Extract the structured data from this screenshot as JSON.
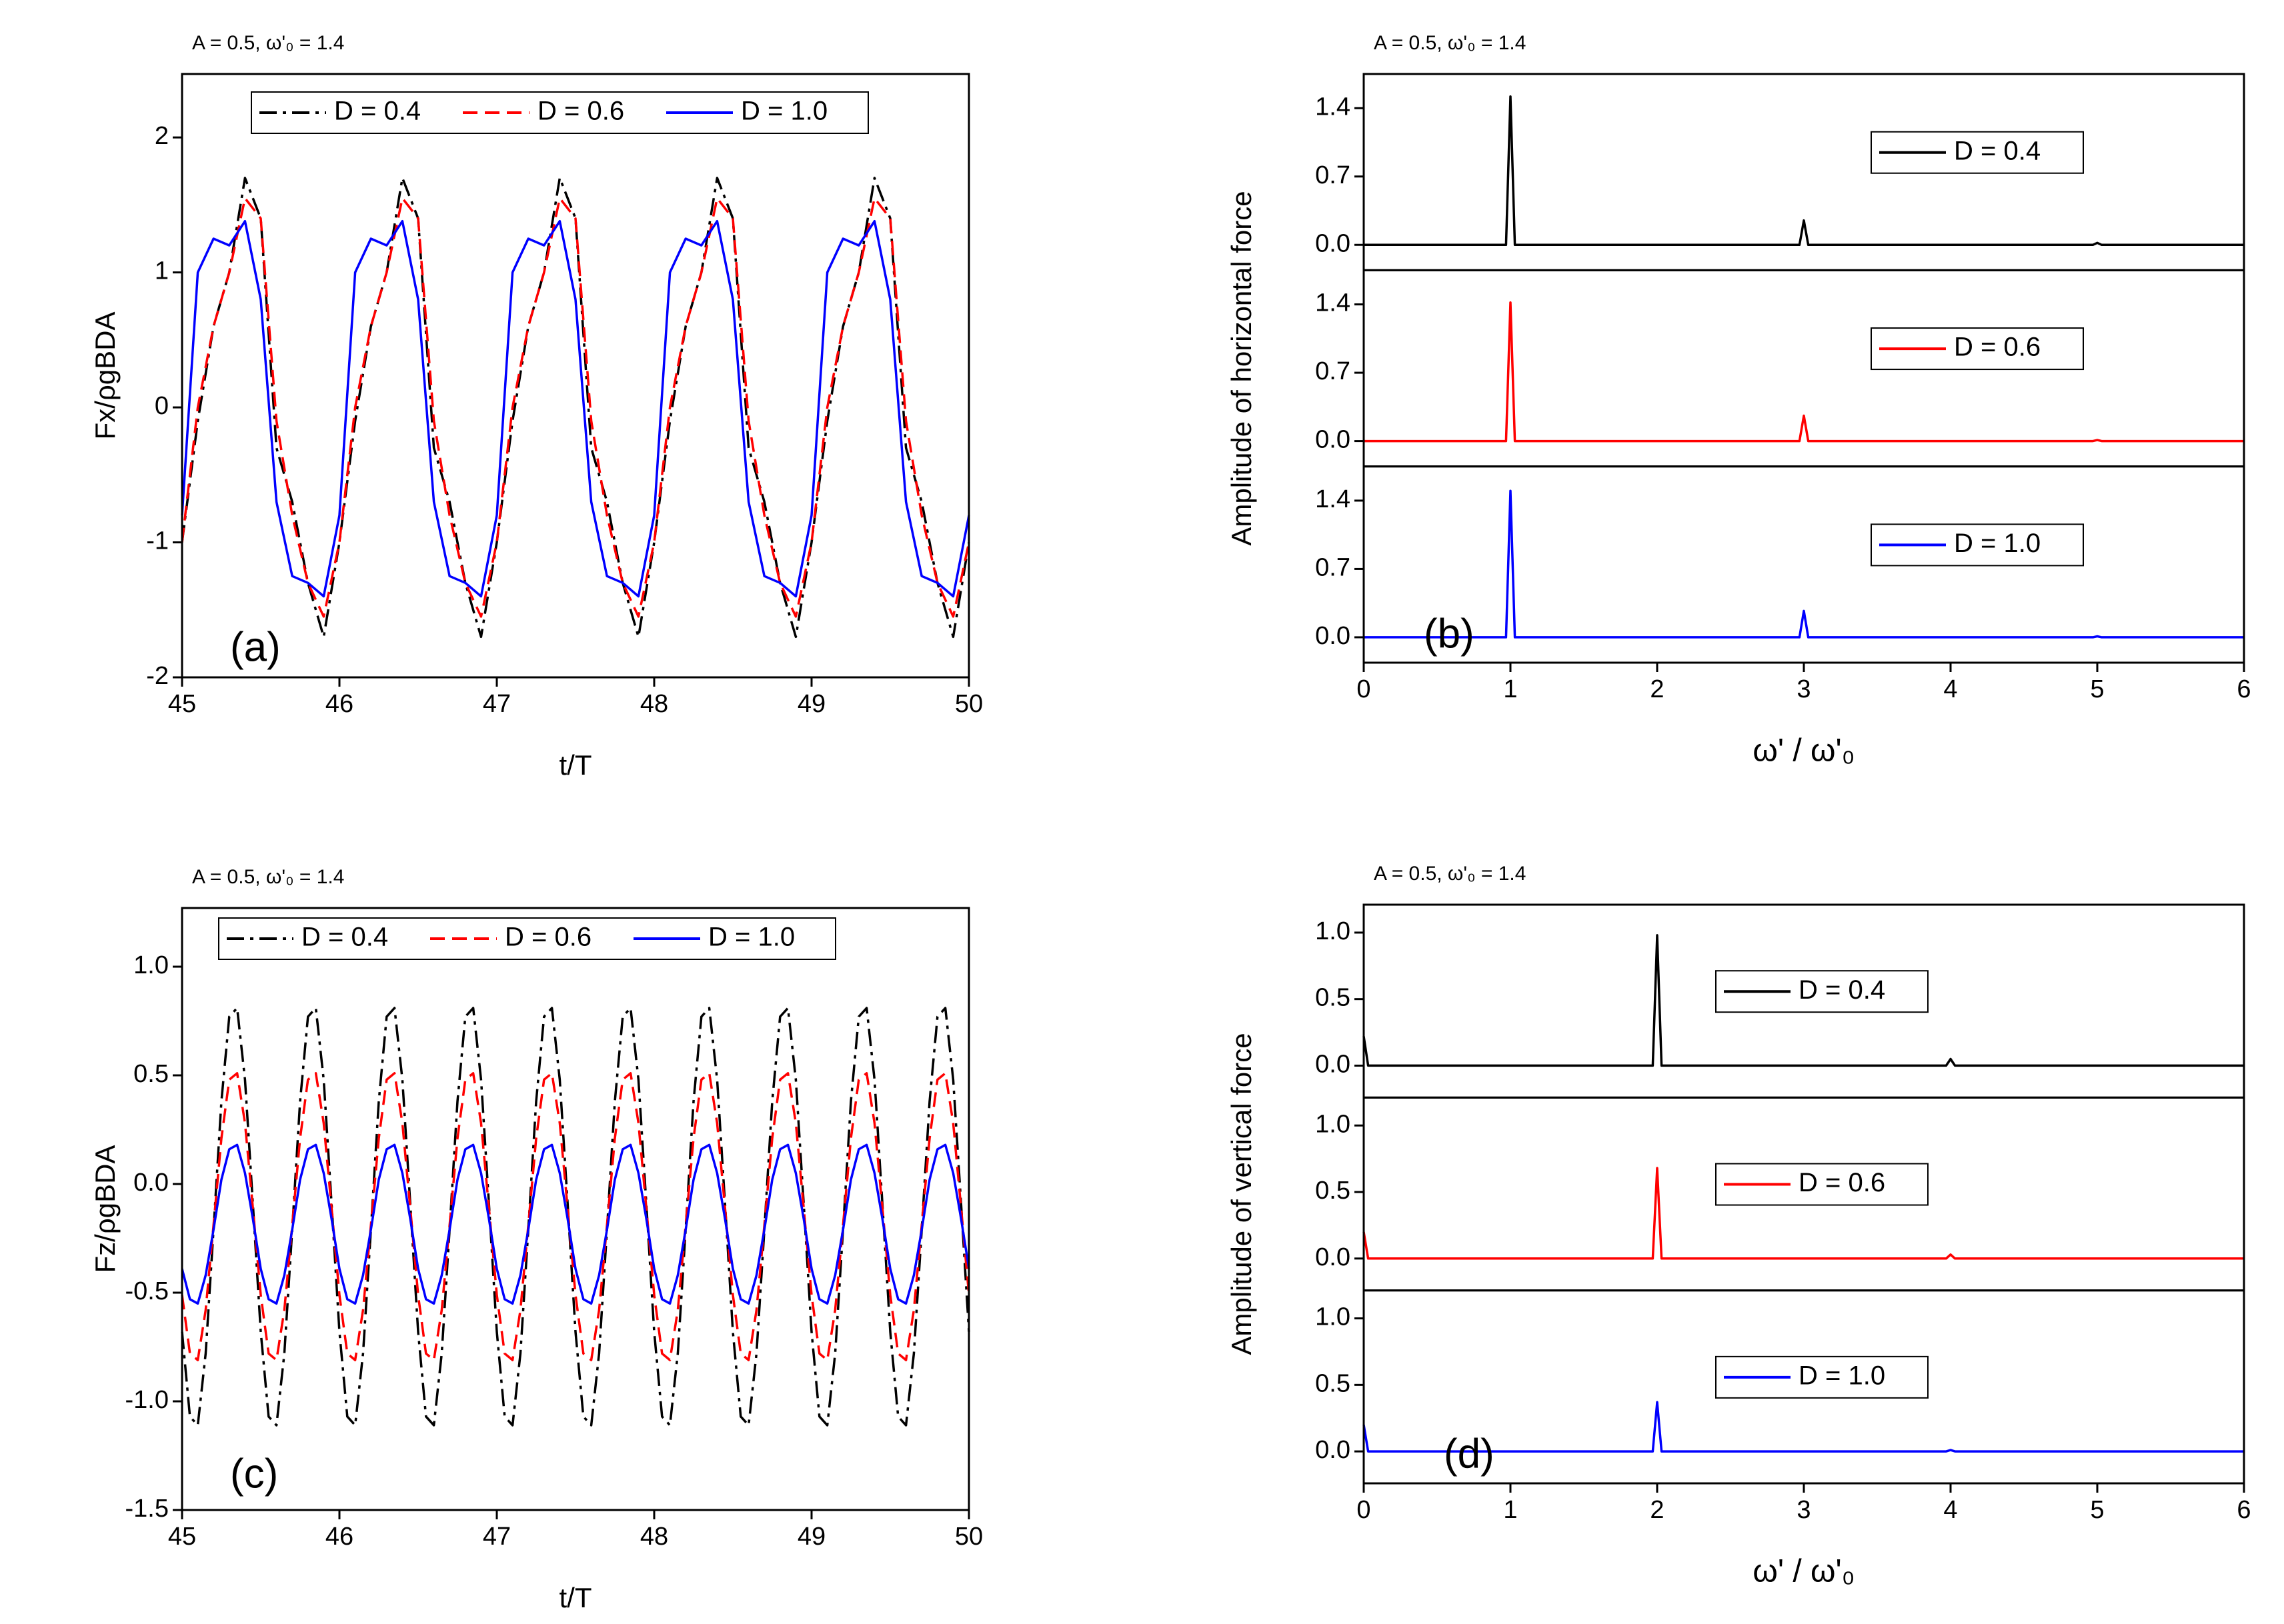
{
  "chart_data": [
    {
      "type": "line",
      "title": "A = 0.5, ω'₀ = 1.4",
      "panel_label": "(a)",
      "xlabel": "t/T",
      "ylabel": "Fx/ρgBDA",
      "xlim": [
        45,
        50
      ],
      "xticks": [
        45,
        46,
        47,
        48,
        49,
        50
      ],
      "ylim": [
        -2,
        2.47
      ],
      "yticks": [
        -2,
        -1,
        0,
        1,
        2
      ],
      "legend": "top",
      "x": [
        45,
        45.1,
        45.2,
        45.3,
        45.4,
        45.5,
        45.6,
        45.7,
        45.8,
        45.9,
        46,
        46.1,
        46.2,
        46.3,
        46.4,
        46.5,
        46.6,
        46.7,
        46.8,
        46.9,
        47,
        47.1,
        47.2,
        47.3,
        47.4,
        47.5,
        47.6,
        47.7,
        47.8,
        47.9,
        48,
        48.1,
        48.2,
        48.3,
        48.4,
        48.5,
        48.6,
        48.7,
        48.8,
        48.9,
        49,
        49.1,
        49.2,
        49.3,
        49.4,
        49.5,
        49.6,
        49.7,
        49.8,
        49.9,
        50
      ],
      "series": [
        {
          "name": "D = 0.4",
          "color": "#000000",
          "dash": "dashdot",
          "values": [
            -1.0,
            -0.1,
            0.6,
            1.0,
            1.7,
            1.4,
            -0.3,
            -0.7,
            -1.3,
            -1.7,
            -1.0,
            -0.1,
            0.6,
            1.0,
            1.7,
            1.4,
            -0.3,
            -0.7,
            -1.3,
            -1.7,
            -1.0,
            -0.1,
            0.6,
            1.0,
            1.7,
            1.4,
            -0.3,
            -0.7,
            -1.3,
            -1.7,
            -1.0,
            -0.1,
            0.6,
            1.0,
            1.7,
            1.4,
            -0.3,
            -0.7,
            -1.3,
            -1.7,
            -1.0,
            -0.1,
            0.6,
            1.0,
            1.7,
            1.4,
            -0.3,
            -0.7,
            -1.3,
            -1.7,
            -1.0
          ]
        },
        {
          "name": "D = 0.6",
          "color": "#ff0000",
          "dash": "dash",
          "values": [
            -1.0,
            0.0,
            0.6,
            1.0,
            1.55,
            1.4,
            -0.1,
            -0.8,
            -1.3,
            -1.55,
            -1.0,
            0.0,
            0.6,
            1.0,
            1.55,
            1.4,
            -0.1,
            -0.8,
            -1.3,
            -1.55,
            -1.0,
            0.0,
            0.6,
            1.0,
            1.55,
            1.4,
            -0.1,
            -0.8,
            -1.3,
            -1.55,
            -1.0,
            0.0,
            0.6,
            1.0,
            1.55,
            1.4,
            -0.1,
            -0.8,
            -1.3,
            -1.55,
            -1.0,
            0.0,
            0.6,
            1.0,
            1.55,
            1.4,
            -0.1,
            -0.8,
            -1.3,
            -1.55,
            -1.0
          ]
        },
        {
          "name": "D = 1.0",
          "color": "#0000ff",
          "dash": "solid",
          "values": [
            -0.8,
            1.0,
            1.25,
            1.2,
            1.38,
            0.8,
            -0.7,
            -1.25,
            -1.3,
            -1.4,
            -0.8,
            1.0,
            1.25,
            1.2,
            1.38,
            0.8,
            -0.7,
            -1.25,
            -1.3,
            -1.4,
            -0.8,
            1.0,
            1.25,
            1.2,
            1.38,
            0.8,
            -0.7,
            -1.25,
            -1.3,
            -1.4,
            -0.8,
            1.0,
            1.25,
            1.2,
            1.38,
            0.8,
            -0.7,
            -1.25,
            -1.3,
            -1.4,
            -0.8,
            1.0,
            1.25,
            1.2,
            1.38,
            0.8,
            -0.7,
            -1.25,
            -1.3,
            -1.4,
            -0.8
          ]
        }
      ]
    },
    {
      "type": "spectrum",
      "title": "A = 0.5, ω'₀ = 1.4",
      "panel_label": "(b)",
      "xlabel": "ω' / ω'₀",
      "ylabel": "Amplitude of horizontal force",
      "xlim": [
        0,
        6
      ],
      "xticks": [
        0,
        1,
        2,
        3,
        4,
        5,
        6
      ],
      "x": [
        0,
        0.97,
        1,
        1.03,
        2.97,
        3,
        3.03,
        4.97,
        5,
        5.03,
        6
      ],
      "panels": [
        {
          "ylim": [
            -0.26,
            1.75
          ],
          "yticks": [
            {
              "value": 0,
              "label": "0.0"
            },
            0.7,
            1.4
          ],
          "series": [
            {
              "name": "D = 0.4",
              "color": "#000000",
              "values": [
                0,
                0,
                1.52,
                0,
                0,
                0.25,
                0,
                0,
                0.02,
                0,
                0
              ]
            }
          ]
        },
        {
          "ylim": [
            -0.26,
            1.75
          ],
          "yticks": [
            {
              "value": 0,
              "label": "0.0"
            },
            0.7,
            1.4
          ],
          "series": [
            {
              "name": "D = 0.6",
              "color": "#ff0000",
              "values": [
                0,
                0,
                1.42,
                0,
                0,
                0.26,
                0,
                0,
                0.01,
                0,
                0
              ]
            }
          ]
        },
        {
          "ylim": [
            -0.26,
            1.75
          ],
          "yticks": [
            {
              "value": 0,
              "label": "0.0"
            },
            0.7,
            1.4
          ],
          "series": [
            {
              "name": "D = 1.0",
              "color": "#0000ff",
              "values": [
                0,
                0,
                1.5,
                0,
                0,
                0.27,
                0,
                0,
                0.01,
                0,
                0
              ]
            }
          ]
        }
      ]
    },
    {
      "type": "line",
      "title": "A = 0.5, ω'₀ = 1.4",
      "panel_label": "(c)",
      "xlabel": "t/T",
      "ylabel": "Fz/ρgBDA",
      "xlim": [
        45,
        50
      ],
      "xticks": [
        45,
        46,
        47,
        48,
        49,
        50
      ],
      "ylim": [
        -1.5,
        1.27
      ],
      "yticks": [
        -1.5,
        {
          "value": -1,
          "label": "-1.0"
        },
        -0.5,
        {
          "value": 0,
          "label": "0.0"
        },
        0.5,
        {
          "value": 1,
          "label": "1.0"
        }
      ],
      "legend": "top",
      "x": [
        45,
        45.05,
        45.1,
        45.15,
        45.2,
        45.25,
        45.3,
        45.35,
        45.4,
        45.45,
        45.5,
        45.55,
        45.6,
        45.65,
        45.7,
        45.75,
        45.8,
        45.85,
        45.9,
        45.95,
        46,
        46.05,
        46.1,
        46.15,
        46.2,
        46.25,
        46.3,
        46.35,
        46.4,
        46.45,
        46.5,
        46.55,
        46.6,
        46.65,
        46.7,
        46.75,
        46.8,
        46.85,
        46.9,
        46.95,
        47,
        47.05,
        47.1,
        47.15,
        47.2,
        47.25,
        47.3,
        47.35,
        47.4,
        47.45,
        47.5,
        47.55,
        47.6,
        47.65,
        47.7,
        47.75,
        47.8,
        47.85,
        47.9,
        47.95,
        48,
        48.05,
        48.1,
        48.15,
        48.2,
        48.25,
        48.3,
        48.35,
        48.4,
        48.45,
        48.5,
        48.55,
        48.6,
        48.65,
        48.7,
        48.75,
        48.8,
        48.85,
        48.9,
        48.95,
        49,
        49.05,
        49.1,
        49.15,
        49.2,
        49.25,
        49.3,
        49.35,
        49.4,
        49.45,
        49.5,
        49.55,
        49.6,
        49.65,
        49.7,
        49.75,
        49.8,
        49.85,
        49.9,
        49.95,
        50
      ],
      "series": [
        {
          "name": "D = 0.4",
          "color": "#000000",
          "dash": "dashdot",
          "values": [
            -0.68,
            -1.07,
            -1.11,
            -0.78,
            -0.21,
            0.38,
            0.77,
            0.81,
            0.48,
            -0.09,
            -0.68,
            -1.07,
            -1.11,
            -0.78,
            -0.21,
            0.38,
            0.77,
            0.81,
            0.48,
            -0.09,
            -0.68,
            -1.07,
            -1.11,
            -0.78,
            -0.21,
            0.38,
            0.77,
            0.81,
            0.48,
            -0.09,
            -0.68,
            -1.07,
            -1.11,
            -0.78,
            -0.21,
            0.38,
            0.77,
            0.81,
            0.48,
            -0.09,
            -0.68,
            -1.07,
            -1.11,
            -0.78,
            -0.21,
            0.38,
            0.77,
            0.81,
            0.48,
            -0.09,
            -0.68,
            -1.07,
            -1.11,
            -0.78,
            -0.21,
            0.38,
            0.77,
            0.81,
            0.48,
            -0.09,
            -0.68,
            -1.07,
            -1.11,
            -0.78,
            -0.21,
            0.38,
            0.77,
            0.81,
            0.48,
            -0.09,
            -0.68,
            -1.07,
            -1.11,
            -0.78,
            -0.21,
            0.38,
            0.77,
            0.81,
            0.48,
            -0.09,
            -0.68,
            -1.07,
            -1.11,
            -0.78,
            -0.21,
            0.38,
            0.77,
            0.81,
            0.48,
            -0.09,
            -0.68,
            -1.07,
            -1.11,
            -0.78,
            -0.21,
            0.38,
            0.77,
            0.81,
            0.48,
            -0.09,
            -0.68
          ]
        },
        {
          "name": "D = 0.6",
          "color": "#ff0000",
          "dash": "dash",
          "values": [
            -0.51,
            -0.78,
            -0.81,
            -0.58,
            -0.19,
            0.21,
            0.48,
            0.51,
            0.28,
            -0.11,
            -0.51,
            -0.78,
            -0.81,
            -0.58,
            -0.19,
            0.21,
            0.48,
            0.51,
            0.28,
            -0.11,
            -0.51,
            -0.78,
            -0.81,
            -0.58,
            -0.19,
            0.21,
            0.48,
            0.51,
            0.28,
            -0.11,
            -0.51,
            -0.78,
            -0.81,
            -0.58,
            -0.19,
            0.21,
            0.48,
            0.51,
            0.28,
            -0.11,
            -0.51,
            -0.78,
            -0.81,
            -0.58,
            -0.19,
            0.21,
            0.48,
            0.51,
            0.28,
            -0.11,
            -0.51,
            -0.78,
            -0.81,
            -0.58,
            -0.19,
            0.21,
            0.48,
            0.51,
            0.28,
            -0.11,
            -0.51,
            -0.78,
            -0.81,
            -0.58,
            -0.19,
            0.21,
            0.48,
            0.51,
            0.28,
            -0.11,
            -0.51,
            -0.78,
            -0.81,
            -0.58,
            -0.19,
            0.21,
            0.48,
            0.51,
            0.28,
            -0.11,
            -0.51,
            -0.78,
            -0.81,
            -0.58,
            -0.19,
            0.21,
            0.48,
            0.51,
            0.28,
            -0.11,
            -0.51,
            -0.78,
            -0.81,
            -0.58,
            -0.19,
            0.21,
            0.48,
            0.51,
            0.28,
            -0.11,
            -0.51
          ]
        },
        {
          "name": "D = 1.0",
          "color": "#0000ff",
          "dash": "solid",
          "values": [
            -0.39,
            -0.53,
            -0.55,
            -0.42,
            -0.21,
            0.02,
            0.16,
            0.18,
            0.05,
            -0.16,
            -0.39,
            -0.53,
            -0.55,
            -0.42,
            -0.21,
            0.02,
            0.16,
            0.18,
            0.05,
            -0.16,
            -0.39,
            -0.53,
            -0.55,
            -0.42,
            -0.21,
            0.02,
            0.16,
            0.18,
            0.05,
            -0.16,
            -0.39,
            -0.53,
            -0.55,
            -0.42,
            -0.21,
            0.02,
            0.16,
            0.18,
            0.05,
            -0.16,
            -0.39,
            -0.53,
            -0.55,
            -0.42,
            -0.21,
            0.02,
            0.16,
            0.18,
            0.05,
            -0.16,
            -0.39,
            -0.53,
            -0.55,
            -0.42,
            -0.21,
            0.02,
            0.16,
            0.18,
            0.05,
            -0.16,
            -0.39,
            -0.53,
            -0.55,
            -0.42,
            -0.21,
            0.02,
            0.16,
            0.18,
            0.05,
            -0.16,
            -0.39,
            -0.53,
            -0.55,
            -0.42,
            -0.21,
            0.02,
            0.16,
            0.18,
            0.05,
            -0.16,
            -0.39,
            -0.53,
            -0.55,
            -0.42,
            -0.21,
            0.02,
            0.16,
            0.18,
            0.05,
            -0.16,
            -0.39,
            -0.53,
            -0.55,
            -0.42,
            -0.21,
            0.02,
            0.16,
            0.18,
            0.05,
            -0.16,
            -0.39
          ]
        }
      ]
    },
    {
      "type": "spectrum",
      "title": "A = 0.5, ω'₀ = 1.4",
      "panel_label": "(d)",
      "xlabel": "ω' / ω'₀",
      "ylabel": "Amplitude of vertical force",
      "xlim": [
        0,
        6
      ],
      "xticks": [
        0,
        1,
        2,
        3,
        4,
        5,
        6
      ],
      "x": [
        0,
        0.03,
        1.97,
        2,
        2.03,
        3.97,
        4,
        4.03,
        6
      ],
      "panels": [
        {
          "ylim": [
            -0.24,
            1.21
          ],
          "yticks": [
            {
              "value": 0,
              "label": "0.0"
            },
            0.5,
            {
              "value": 1,
              "label": "1.0"
            }
          ],
          "series": [
            {
              "name": "D = 0.4",
              "color": "#000000",
              "values": [
                0.22,
                0,
                0,
                0.98,
                0,
                0,
                0.05,
                0,
                0
              ]
            }
          ]
        },
        {
          "ylim": [
            -0.24,
            1.21
          ],
          "yticks": [
            {
              "value": 0,
              "label": "0.0"
            },
            0.5,
            {
              "value": 1,
              "label": "1.0"
            }
          ],
          "series": [
            {
              "name": "D = 0.6",
              "color": "#ff0000",
              "values": [
                0.2,
                0,
                0,
                0.68,
                0,
                0,
                0.03,
                0,
                0
              ]
            }
          ]
        },
        {
          "ylim": [
            -0.24,
            1.21
          ],
          "yticks": [
            {
              "value": 0,
              "label": "0.0"
            },
            0.5,
            {
              "value": 1,
              "label": "1.0"
            }
          ],
          "series": [
            {
              "name": "D = 1.0",
              "color": "#0000ff",
              "values": [
                0.2,
                0,
                0,
                0.37,
                0,
                0,
                0.01,
                0,
                0
              ]
            }
          ]
        }
      ]
    }
  ]
}
